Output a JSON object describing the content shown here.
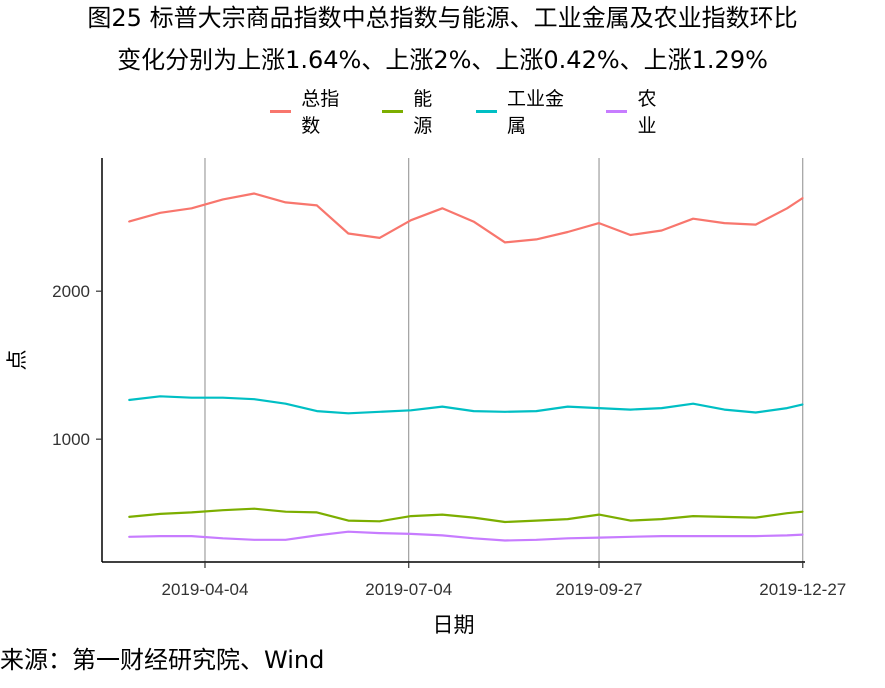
{
  "title_line1": "图25 标普大宗商品指数中总指数与能源、工业金属及农业指数环比",
  "title_line2": "变化分别为上涨1.64%、上涨2%、上涨0.42%、上涨1.29%",
  "source": "来源：第一财经研究院、Wind",
  "chart_data": {
    "type": "line",
    "title": "图25 标普大宗商品指数中总指数与能源、工业金属及农业指数环比变化分别为上涨1.64%、上涨2%、上涨0.42%、上涨1.29%",
    "xlabel": "日期",
    "ylabel": "点",
    "y_ticks": [
      1000,
      2000
    ],
    "ylim": [
      170,
      2900
    ],
    "xlim": [
      "2019-02-17",
      "2019-12-28"
    ],
    "x_ticks": [
      "2019-04-04",
      "2019-07-04",
      "2019-09-27",
      "2019-12-27"
    ],
    "grid": "vertical lines at x ticks",
    "legend_position": "top",
    "x": [
      "2019-03-01",
      "2019-03-15",
      "2019-03-29",
      "2019-04-12",
      "2019-04-26",
      "2019-05-10",
      "2019-05-24",
      "2019-06-07",
      "2019-06-21",
      "2019-07-05",
      "2019-07-19",
      "2019-08-02",
      "2019-08-16",
      "2019-08-30",
      "2019-09-13",
      "2019-09-27",
      "2019-10-11",
      "2019-10-25",
      "2019-11-08",
      "2019-11-22",
      "2019-12-06",
      "2019-12-20",
      "2019-12-27"
    ],
    "series": [
      {
        "name": "总指数",
        "color": "#F8766D",
        "values": [
          2470,
          2530,
          2560,
          2620,
          2660,
          2600,
          2580,
          2390,
          2360,
          2480,
          2560,
          2470,
          2330,
          2350,
          2400,
          2460,
          2380,
          2410,
          2490,
          2460,
          2450,
          2560,
          2630
        ]
      },
      {
        "name": "能源",
        "color": "#7CAE00",
        "values": [
          475,
          495,
          505,
          520,
          530,
          510,
          505,
          450,
          445,
          480,
          490,
          470,
          440,
          450,
          460,
          490,
          450,
          460,
          480,
          475,
          470,
          500,
          510
        ]
      },
      {
        "name": "工业金属",
        "color": "#00BFC4",
        "values": [
          1265,
          1290,
          1280,
          1280,
          1270,
          1240,
          1190,
          1175,
          1185,
          1195,
          1220,
          1190,
          1185,
          1190,
          1220,
          1210,
          1200,
          1210,
          1240,
          1200,
          1180,
          1210,
          1235
        ]
      },
      {
        "name": "农业",
        "color": "#C77CFF",
        "values": [
          340,
          345,
          345,
          330,
          320,
          320,
          350,
          375,
          365,
          360,
          350,
          330,
          315,
          320,
          330,
          335,
          340,
          345,
          345,
          345,
          345,
          350,
          355
        ]
      }
    ]
  }
}
